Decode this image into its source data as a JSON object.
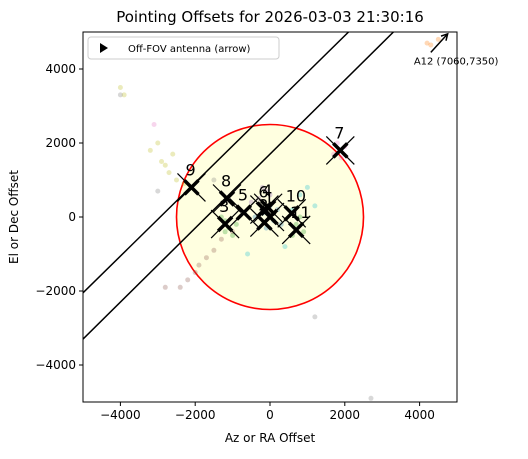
{
  "chart_data": {
    "type": "scatter",
    "title": "Pointing Offsets for 2026-03-03 21:30:16",
    "x_label": "Az or RA Offset",
    "y_label": "El or Dec Offset",
    "xlim": [
      -5000,
      5000
    ],
    "ylim": [
      -5000,
      5000
    ],
    "xticks": [
      {
        "value": -4000,
        "label": "−4000"
      },
      {
        "value": -2000,
        "label": "−2000"
      },
      0,
      2000,
      4000
    ],
    "yticks": [
      {
        "value": -4000,
        "label": "−4000"
      },
      {
        "value": -2000,
        "label": "−2000"
      },
      0,
      2000,
      4000
    ],
    "legend": {
      "label": "Off-FOV antenna (arrow)",
      "position": "upper left"
    },
    "circle": {
      "center": [
        0,
        0
      ],
      "radius": 2500,
      "edge_color": "#ff0000",
      "fill": "#ffffe0"
    },
    "lines": [
      {
        "x": [
          -5000,
          2100
        ],
        "y": [
          -2050,
          5000
        ],
        "color": "#000000"
      },
      {
        "x": [
          -5000,
          3300
        ],
        "y": [
          -3300,
          5000
        ],
        "color": "#000000"
      }
    ],
    "series": [
      {
        "color": "#bcbd22",
        "x": [
          -3200,
          -2900,
          -2700,
          -2500,
          -2300,
          -2100,
          -3000,
          -2800,
          -4000,
          -3900,
          -2600
        ],
        "y": [
          1800,
          1500,
          1200,
          1000,
          900,
          800,
          2000,
          1400,
          3500,
          3300,
          1700
        ]
      },
      {
        "color": "#8c564b",
        "x": [
          -2400,
          -2200,
          -2000,
          -1700,
          -1500,
          -1300,
          -2800,
          -1000,
          -1900
        ],
        "y": [
          -1900,
          -1700,
          -1500,
          -1100,
          -900,
          -600,
          -1900,
          -400,
          -1300
        ]
      },
      {
        "color": "#2ca02c",
        "x": [
          -1200,
          -1100,
          -1000,
          -1300,
          -900,
          -1200,
          700,
          900,
          600,
          800
        ],
        "y": [
          -100,
          -300,
          -500,
          0,
          -200,
          -400,
          -200,
          -400,
          -500,
          0
        ]
      },
      {
        "color": "#1f77b4",
        "x": [
          -200,
          100,
          0,
          -400,
          200,
          -100,
          300
        ],
        "y": [
          100,
          -100,
          300,
          0,
          200,
          -300,
          -200
        ]
      },
      {
        "color": "#9467bd",
        "x": [
          -300,
          -100,
          -500,
          0,
          -200
        ],
        "y": [
          500,
          700,
          400,
          600,
          800
        ]
      },
      {
        "color": "#17becf",
        "x": [
          800,
          1000,
          400,
          -600,
          600,
          1200
        ],
        "y": [
          600,
          800,
          -800,
          -1000,
          200,
          300
        ]
      },
      {
        "color": "#e377c2",
        "x": [
          1800,
          1700,
          2000,
          1900,
          -3100
        ],
        "y": [
          2000,
          1700,
          1900,
          1600,
          2500
        ]
      },
      {
        "color": "#ff7f0e",
        "x": [
          4200,
          4500,
          4300
        ],
        "y": [
          4700,
          4800,
          4650
        ]
      },
      {
        "color": "#7f7f7f",
        "x": [
          -3000,
          -1500,
          1200,
          2700,
          -4000
        ],
        "y": [
          700,
          1000,
          -2700,
          -4900,
          3300
        ]
      }
    ],
    "markers": {
      "color": "#000000",
      "labels": [
        "1",
        "2",
        "3",
        "4",
        "5",
        "6",
        "7",
        "8",
        "9",
        "10",
        "11"
      ],
      "x": [
        0,
        -150,
        -1200,
        -50,
        -700,
        -150,
        1880,
        -1150,
        -2100,
        580,
        700
      ],
      "y": [
        0,
        -150,
        -190,
        250,
        120,
        200,
        1800,
        500,
        800,
        100,
        -350
      ]
    },
    "arrow": {
      "from": [
        4300,
        4450
      ],
      "to": [
        4750,
        4950
      ],
      "color": "#000000"
    },
    "annotation": "A12 (7060,7350)"
  }
}
